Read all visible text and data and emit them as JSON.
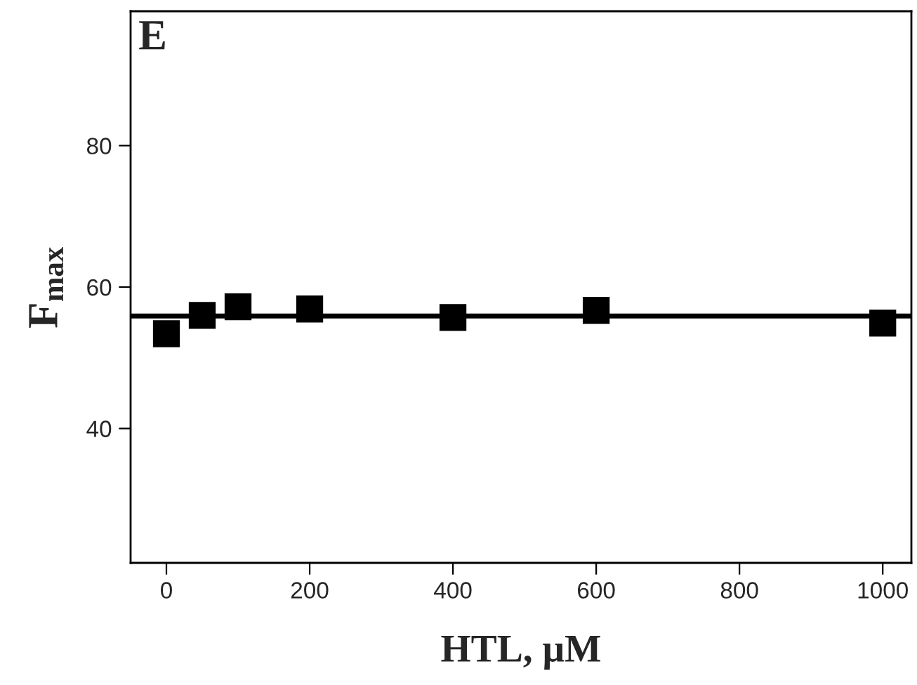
{
  "chart_data": {
    "type": "scatter",
    "xlabel": "HTL, μM",
    "ylabel": "F$_{max}$",
    "annotations": [
      "E"
    ],
    "x": [
      0,
      50,
      100,
      200,
      400,
      600,
      1000
    ],
    "series": [
      {
        "color": "#000000",
        "marker": "square",
        "values": [
          53.4,
          56.0,
          57.2,
          56.9,
          55.7,
          56.7,
          54.9
        ]
      },
      {
        "type": "line",
        "color": "#000000",
        "line_style": "solid",
        "marker": "none",
        "x": [
          -50,
          1040
        ],
        "values": [
          55.9,
          55.9
        ]
      }
    ],
    "xlim": [
      -50,
      1040
    ],
    "ylim": [
      21,
      99
    ],
    "xticks": [
      0,
      200,
      400,
      600,
      800,
      1000
    ],
    "yticks": [
      40,
      60,
      80
    ],
    "grid": false,
    "legend": false
  }
}
